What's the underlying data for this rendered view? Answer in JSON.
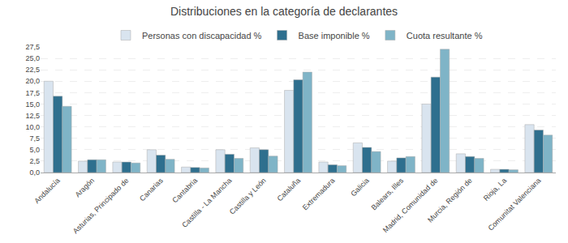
{
  "chart_data": {
    "type": "bar",
    "title": "Distribuciones en la categoría de declarantes",
    "categories": [
      "Andalucía",
      "Aragón",
      "Asturias, Principado de",
      "Canarias",
      "Cantabria",
      "Castilla - La Mancha",
      "Castilla y León",
      "Cataluña",
      "Extremadura",
      "Galicia",
      "Balears, Illes",
      "Madrid, Comunidad de",
      "Murcia, Región de",
      "Rioja, La",
      "Comunitat Valenciana"
    ],
    "series": [
      {
        "name": "Personas con discapacidad %",
        "color": "#d9e4ef",
        "values": [
          20.0,
          2.5,
          2.3,
          5.0,
          1.2,
          5.0,
          5.4,
          18.0,
          2.3,
          6.5,
          2.5,
          15.0,
          4.1,
          0.7,
          10.5
        ]
      },
      {
        "name": "Base imponible %",
        "color": "#2e6f8e",
        "values": [
          16.7,
          2.8,
          2.3,
          3.8,
          1.1,
          4.0,
          5.0,
          20.3,
          1.7,
          5.5,
          3.2,
          20.9,
          3.5,
          0.7,
          9.3
        ]
      },
      {
        "name": "Cuota resultante %",
        "color": "#7fb4c7",
        "values": [
          14.5,
          2.8,
          2.1,
          2.9,
          1.0,
          3.1,
          3.6,
          22.0,
          1.5,
          4.6,
          3.5,
          27.0,
          3.1,
          0.6,
          8.2
        ]
      }
    ],
    "ylim": [
      0,
      27.5
    ],
    "yticks": [
      {
        "value": 0.0,
        "label": "0,0"
      },
      {
        "value": 2.5,
        "label": "2,5"
      },
      {
        "value": 5.0,
        "label": "5,0"
      },
      {
        "value": 7.5,
        "label": "7,5"
      },
      {
        "value": 10.0,
        "label": "10,0"
      },
      {
        "value": 12.5,
        "label": "12,5"
      },
      {
        "value": 15.0,
        "label": "15,0"
      },
      {
        "value": 17.5,
        "label": "17,5"
      },
      {
        "value": 20.0,
        "label": "20,0"
      },
      {
        "value": 22.5,
        "label": "22,5"
      },
      {
        "value": 25.0,
        "label": "25,0"
      },
      {
        "value": 27.5,
        "label": "27,5"
      }
    ],
    "grid": true,
    "legend": "top"
  }
}
